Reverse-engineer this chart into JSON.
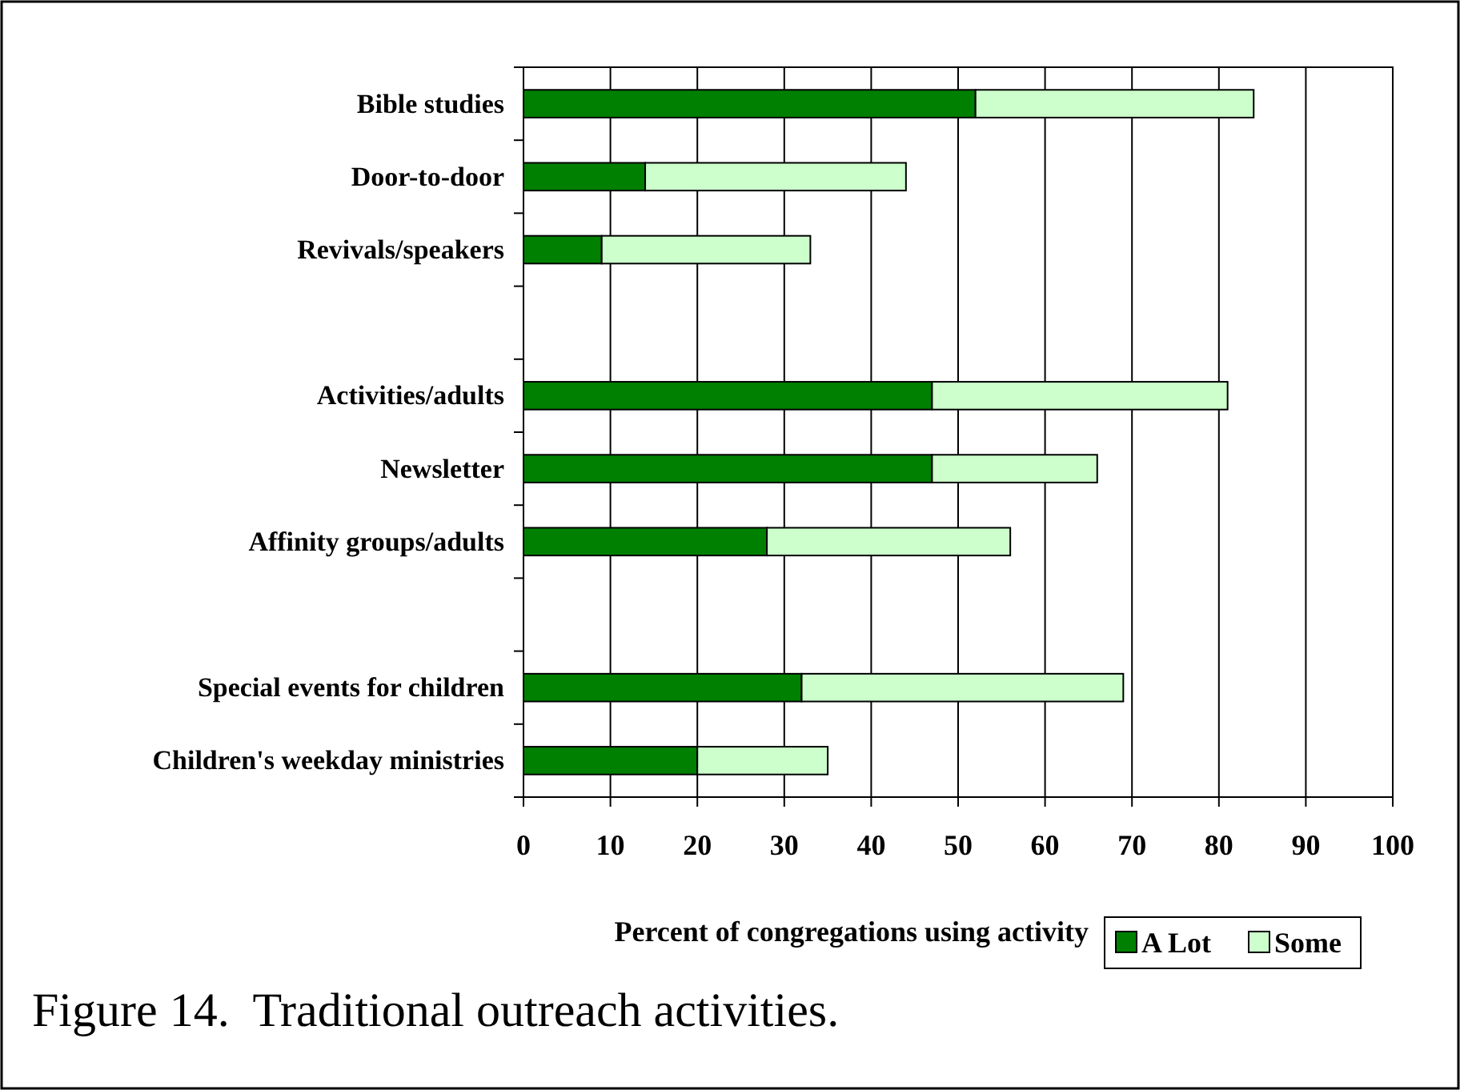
{
  "chart_data": {
    "type": "bar",
    "orientation": "horizontal",
    "stacked": true,
    "xlabel": "Percent of congregations using activity",
    "annotations": [
      "Figure 14.  Traditional outreach activities."
    ],
    "categories": [
      "Bible studies",
      "Door-to-door",
      "Revivals/speakers",
      null,
      "Activities/adults",
      "Newsletter",
      "Affinity groups/adults",
      null,
      "Special events for children",
      "Children's weekday ministries"
    ],
    "series": [
      {
        "name": "A Lot",
        "color": "#008000",
        "values": [
          52,
          14,
          9,
          null,
          47,
          47,
          28,
          null,
          32,
          20
        ]
      },
      {
        "name": "Some",
        "color": "#ccffcc",
        "values": [
          32,
          30,
          24,
          null,
          34,
          19,
          28,
          null,
          37,
          15
        ]
      }
    ],
    "xlim": [
      0,
      100
    ],
    "xticks": [
      0,
      10,
      20,
      30,
      40,
      50,
      60,
      70,
      80,
      90,
      100
    ],
    "grid": "x",
    "legend": "bottom"
  }
}
